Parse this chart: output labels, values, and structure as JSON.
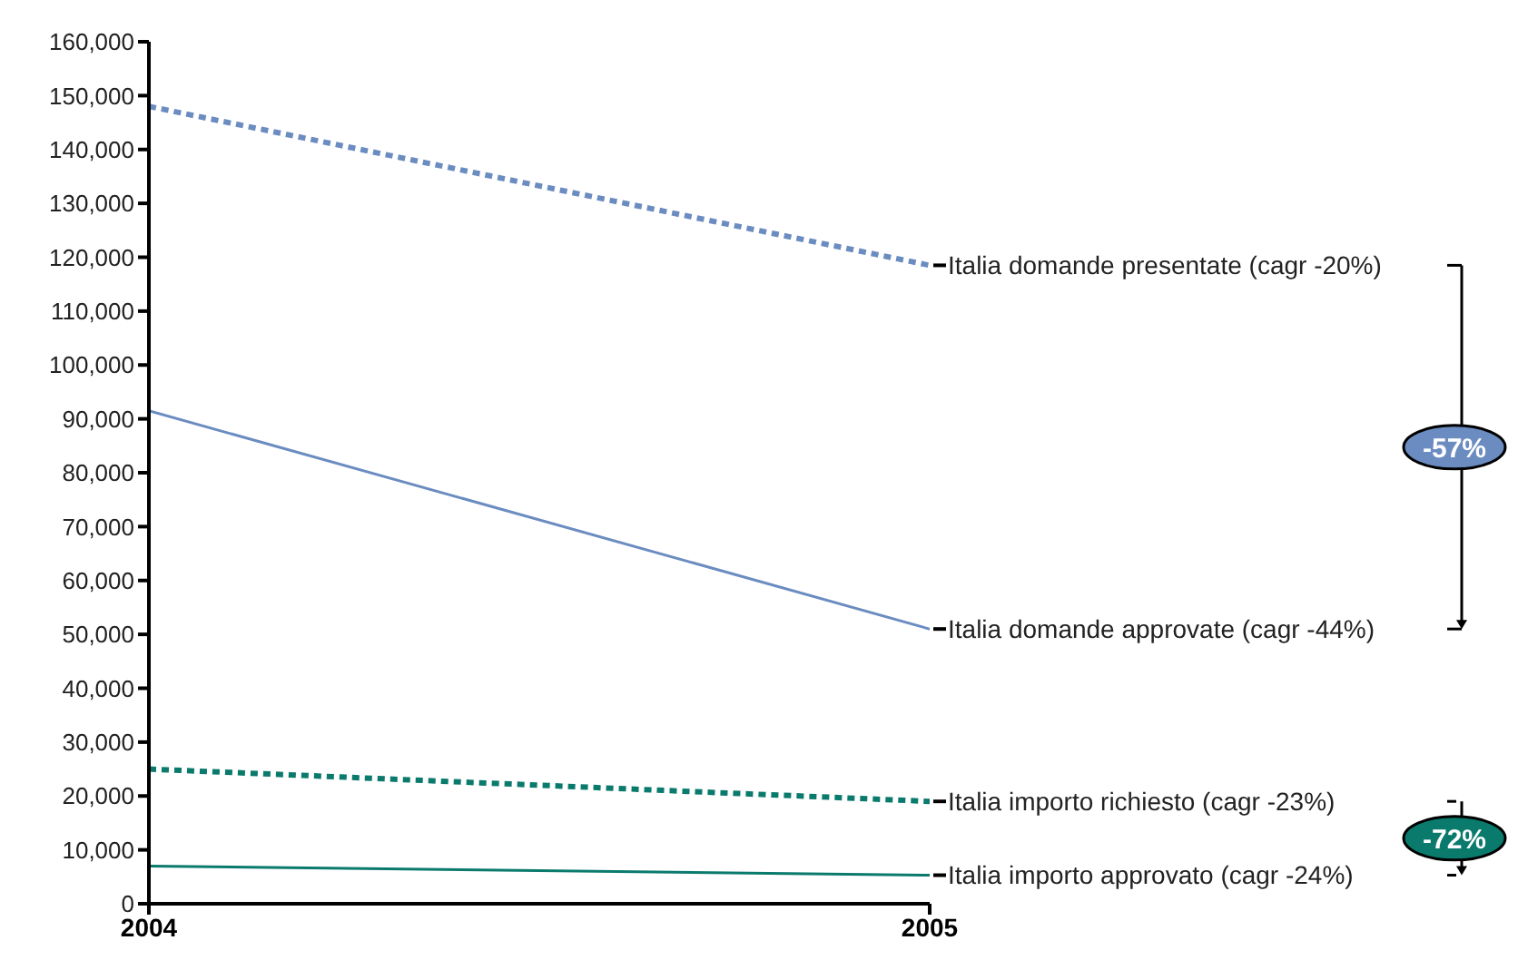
{
  "chart_data": {
    "type": "line",
    "categories": [
      "2004",
      "2005"
    ],
    "series": [
      {
        "name": "Italia domande presentate (cagr -20%)",
        "color": "#6b8cc0",
        "values": [
          148000,
          118500
        ],
        "line_style": "dotted"
      },
      {
        "name": "Italia domande approvate (cagr -44%)",
        "color": "#6b8cc0",
        "values": [
          91500,
          51000
        ],
        "line_style": "solid"
      },
      {
        "name": "Italia importo richiesto (cagr -23%)",
        "color": "#0a7a6c",
        "values": [
          25000,
          19000
        ],
        "line_style": "dotted"
      },
      {
        "name": "Italia importo approvato (cagr -24%)",
        "color": "#0a7a6c",
        "values": [
          7000,
          5300
        ],
        "line_style": "solid"
      }
    ],
    "ylim": [
      0,
      160000
    ],
    "yticks": [
      0,
      {
        "value": 10000,
        "label": "10,000"
      },
      {
        "value": 20000,
        "label": "20,000"
      },
      {
        "value": 30000,
        "label": "30,000"
      },
      {
        "value": 40000,
        "label": "40,000"
      },
      {
        "value": 50000,
        "label": "50,000"
      },
      {
        "value": 60000,
        "label": "60,000"
      },
      {
        "value": 70000,
        "label": "70,000"
      },
      {
        "value": 80000,
        "label": "80,000"
      },
      {
        "value": 90000,
        "label": "90,000"
      },
      {
        "value": 100000,
        "label": "100,000"
      },
      {
        "value": 110000,
        "label": "110,000"
      },
      {
        "value": 120000,
        "label": "120,000"
      },
      {
        "value": 130000,
        "label": "130,000"
      },
      {
        "value": 140000,
        "label": "140,000"
      },
      {
        "value": 150000,
        "label": "150,000"
      },
      {
        "value": 160000,
        "label": "160,000"
      }
    ],
    "marker": "none",
    "annotations": [
      "-57%",
      "-72%"
    ]
  }
}
